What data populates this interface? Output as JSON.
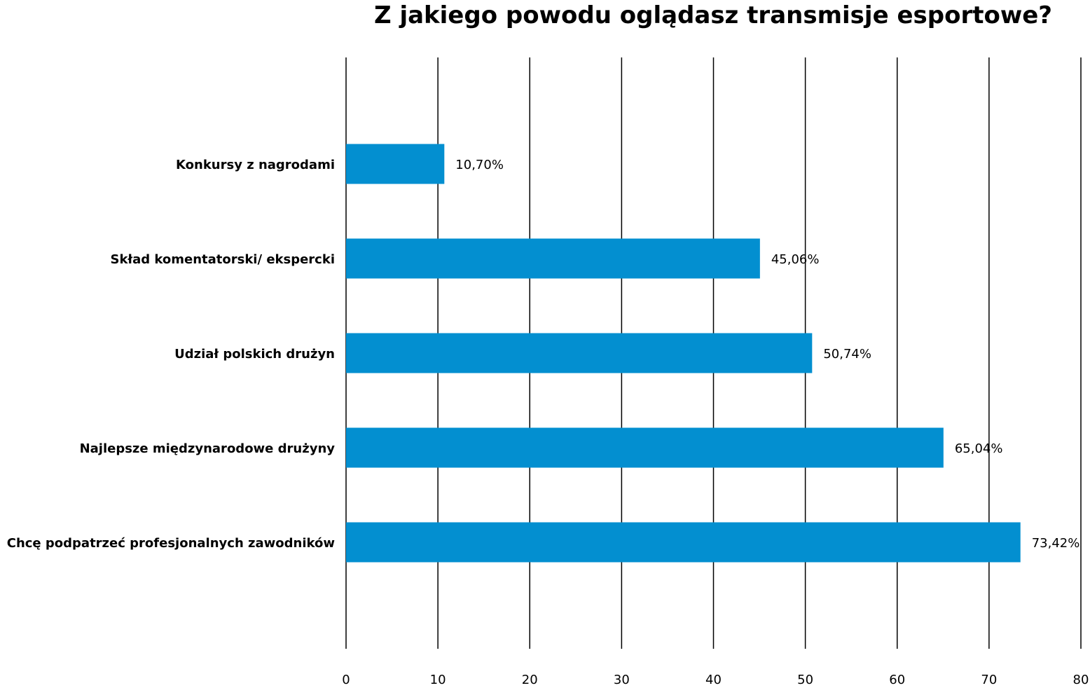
{
  "chart_data": {
    "type": "bar",
    "orientation": "horizontal",
    "title": "Z jakiego powodu oglądasz transmisje esportowe?",
    "categories": [
      "Konkursy z nagrodami",
      "Skład komentatorski/ ekspercki",
      "Udział polskich drużyn",
      "Najlepsze międzynarodowe drużyny",
      "Chcę podpatrzeć profesjonalnych zawodników"
    ],
    "values": [
      10.7,
      45.06,
      50.74,
      65.04,
      73.42
    ],
    "value_labels": [
      "10,70%",
      "45,06%",
      "50,74%",
      "65,04%",
      "73,42%"
    ],
    "xlim": [
      0,
      80
    ],
    "xticks": [
      0,
      10,
      20,
      30,
      40,
      50,
      60,
      70,
      80
    ],
    "xtick_labels": [
      "0",
      "10",
      "20",
      "30",
      "40",
      "50",
      "60",
      "70",
      "80"
    ],
    "grid": "vertical",
    "legend": "none",
    "colors": {
      "bar": "#038fd0",
      "grid": "#000000",
      "text": "#000000"
    }
  }
}
